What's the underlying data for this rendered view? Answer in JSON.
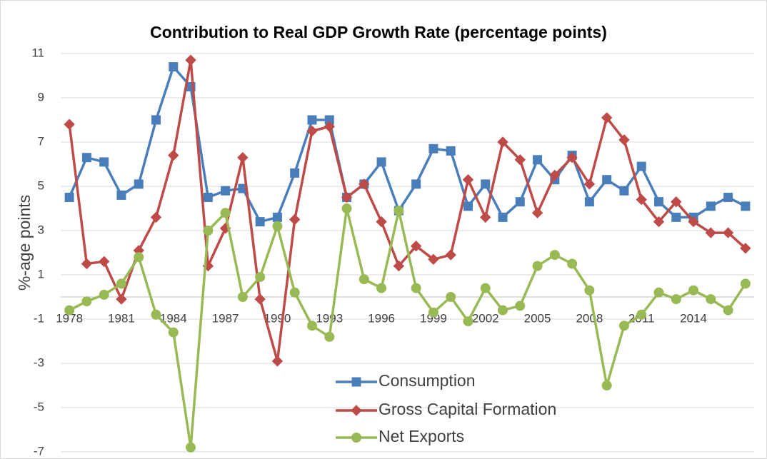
{
  "chart_data": {
    "type": "line",
    "title": "Contribution to Real GDP Growth Rate (percentage points)",
    "y_label": "%-age points",
    "categories": [
      1978,
      null,
      null,
      1981,
      null,
      null,
      1984,
      null,
      null,
      1987,
      null,
      null,
      1990,
      null,
      null,
      1993,
      null,
      null,
      1996,
      null,
      null,
      1999,
      null,
      null,
      2002,
      null,
      null,
      2005,
      null,
      null,
      2008,
      null,
      null,
      2011,
      null,
      null,
      2014,
      null,
      null,
      null
    ],
    "series": [
      {
        "name": "Consumption",
        "color": "#4a7ebb",
        "marker": "square",
        "values": [
          4.5,
          6.3,
          6.1,
          4.6,
          5.1,
          8.0,
          10.4,
          9.5,
          4.5,
          4.8,
          4.9,
          3.4,
          3.6,
          5.6,
          8.0,
          8.0,
          4.5,
          5.1,
          6.1,
          3.9,
          5.1,
          6.7,
          6.6,
          4.1,
          5.1,
          3.6,
          4.3,
          6.2,
          5.3,
          6.4,
          4.3,
          5.3,
          4.8,
          5.9,
          4.3,
          3.6,
          3.6,
          4.1,
          4.5,
          4.1
        ]
      },
      {
        "name": "Gross Capital Formation",
        "color": "#be4b48",
        "marker": "diamond",
        "values": [
          7.8,
          1.5,
          1.6,
          -0.1,
          2.1,
          3.6,
          6.4,
          10.7,
          1.4,
          3.1,
          6.3,
          -0.1,
          -2.9,
          3.5,
          7.5,
          7.7,
          4.5,
          5.1,
          3.4,
          1.4,
          2.3,
          1.7,
          1.9,
          5.3,
          3.6,
          7.0,
          6.2,
          3.8,
          5.5,
          6.3,
          5.1,
          8.1,
          7.1,
          4.4,
          3.4,
          4.3,
          3.4,
          2.9,
          2.9,
          2.2
        ]
      },
      {
        "name": "Net Exports",
        "color": "#98b954",
        "marker": "circle",
        "values": [
          -0.6,
          -0.2,
          0.1,
          0.6,
          1.8,
          -0.8,
          -1.6,
          -6.8,
          3.0,
          3.8,
          0.0,
          0.9,
          3.2,
          0.2,
          -1.3,
          -1.8,
          4.0,
          0.8,
          0.4,
          3.9,
          0.4,
          -0.7,
          0.0,
          -1.1,
          0.4,
          -0.6,
          -0.4,
          1.4,
          1.9,
          1.5,
          0.3,
          -4.0,
          -1.3,
          -0.8,
          0.2,
          -0.1,
          0.3,
          -0.1,
          -0.6,
          0.6
        ]
      }
    ],
    "ylim": [
      -7,
      11
    ],
    "yticks": [
      -7,
      -5,
      -3,
      -1,
      1,
      3,
      5,
      7,
      9,
      11
    ],
    "grid": true
  }
}
